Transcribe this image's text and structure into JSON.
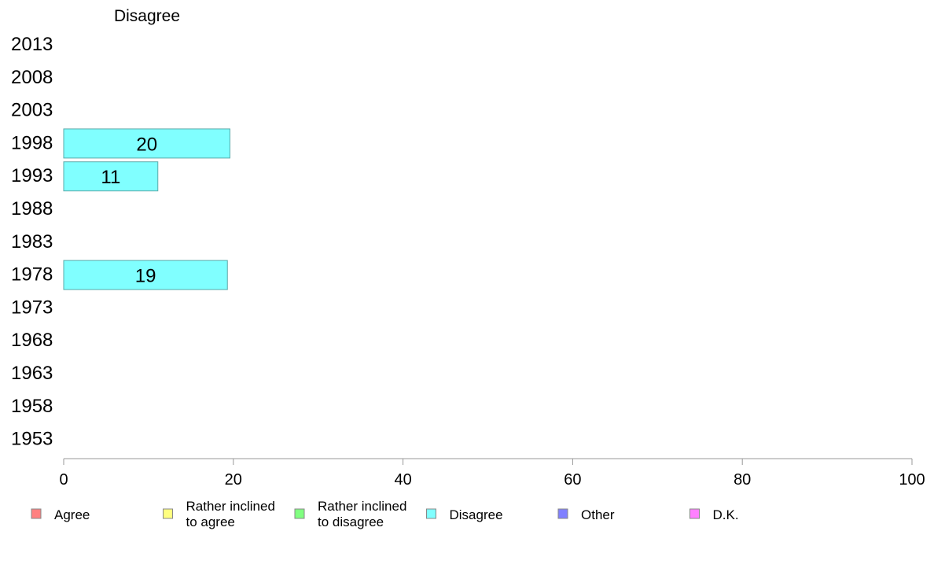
{
  "chart_data": {
    "type": "bar",
    "orientation": "horizontal",
    "title": "Disagree",
    "categories": [
      "2013",
      "2008",
      "2003",
      "1998",
      "1993",
      "1988",
      "1983",
      "1978",
      "1973",
      "1968",
      "1963",
      "1958",
      "1953"
    ],
    "series": [
      {
        "name": "Disagree",
        "color": "#80ffff",
        "values": [
          null,
          null,
          null,
          19.6,
          11.1,
          null,
          null,
          19.3,
          null,
          null,
          null,
          null,
          null
        ],
        "labels": [
          "",
          "",
          "",
          "20",
          "11",
          "",
          "",
          "19",
          "",
          "",
          "",
          "",
          ""
        ]
      }
    ],
    "xlim": [
      0,
      100
    ],
    "xticks": [
      "0",
      "20",
      "40",
      "60",
      "80",
      "100"
    ],
    "grid": false,
    "legend": {
      "placement": "bottom",
      "items": [
        {
          "label_lines": [
            "Agree"
          ],
          "color": "#ff8080"
        },
        {
          "label_lines": [
            "Rather inclined",
            "to agree"
          ],
          "color": "#ffff80"
        },
        {
          "label_lines": [
            "Rather inclined",
            "to disagree"
          ],
          "color": "#80ff80"
        },
        {
          "label_lines": [
            "Disagree"
          ],
          "color": "#80ffff"
        },
        {
          "label_lines": [
            "Other"
          ],
          "color": "#8080ff"
        },
        {
          "label_lines": [
            "D.K."
          ],
          "color": "#ff80ff"
        }
      ]
    }
  }
}
